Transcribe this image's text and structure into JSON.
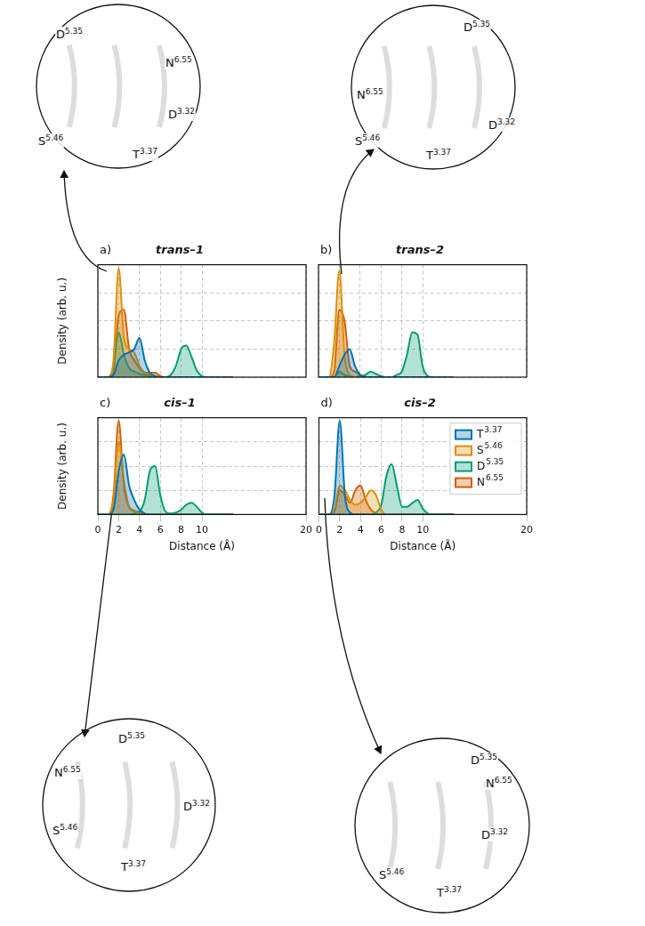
{
  "chart_data": [
    {
      "type": "area",
      "label": "a)",
      "title": "trans–1",
      "x": [
        0,
        0.5,
        1,
        1.5,
        2,
        2.5,
        3,
        3.5,
        4,
        4.5,
        5,
        5.5,
        6,
        6.5,
        7,
        7.5,
        8,
        8.5,
        9,
        9.5,
        10,
        10.5,
        11,
        11.5,
        12,
        12.5,
        13
      ],
      "series": [
        {
          "name": "T3.37",
          "color": "#0173b2",
          "values": [
            0,
            0,
            0,
            0.02,
            0.15,
            0.2,
            0.22,
            0.25,
            0.35,
            0.15,
            0.04,
            0.01,
            0,
            0,
            0,
            0,
            0,
            0,
            0,
            0,
            0,
            0,
            0,
            0,
            0,
            0,
            0
          ]
        },
        {
          "name": "S5.46",
          "color": "#de8f05",
          "values": [
            0,
            0,
            0,
            0.15,
            0.97,
            0.35,
            0.25,
            0.22,
            0.1,
            0.04,
            0.02,
            0,
            0,
            0,
            0,
            0,
            0,
            0,
            0,
            0,
            0,
            0,
            0,
            0,
            0,
            0,
            0
          ]
        },
        {
          "name": "D5.35",
          "color": "#029e73",
          "values": [
            0,
            0,
            0,
            0.1,
            0.4,
            0.2,
            0.08,
            0.05,
            0.03,
            0.02,
            0.01,
            0,
            0,
            0,
            0.02,
            0.1,
            0.25,
            0.28,
            0.18,
            0.06,
            0.01,
            0,
            0,
            0,
            0,
            0,
            0
          ]
        },
        {
          "name": "N6.55",
          "color": "#d55e00",
          "values": [
            0,
            0,
            0,
            0.05,
            0.55,
            0.6,
            0.25,
            0.15,
            0.08,
            0.04,
            0.04,
            0.04,
            0.01,
            0,
            0,
            0,
            0,
            0,
            0,
            0,
            0,
            0,
            0,
            0,
            0,
            0,
            0
          ]
        }
      ],
      "xlim": [
        0,
        20
      ],
      "xticks": [
        0,
        2,
        4,
        6,
        8,
        10,
        20
      ],
      "ylim": [
        0,
        1
      ],
      "yticks": [
        0,
        0.25,
        0.5,
        0.75,
        1
      ],
      "ylabel": "Density (arb. u.)",
      "grid": true,
      "tick_labels": false,
      "inset_labels": [
        "D5.35",
        "N6.55",
        "S5.46",
        "D3.32",
        "T3.37"
      ]
    },
    {
      "type": "area",
      "label": "b)",
      "title": "trans–2",
      "x": [
        0,
        0.5,
        1,
        1.5,
        2,
        2.5,
        3,
        3.5,
        4,
        4.5,
        5,
        5.5,
        6,
        6.5,
        7,
        7.5,
        8,
        8.5,
        9,
        9.5,
        10,
        10.5,
        11,
        11.5,
        12,
        12.5,
        13
      ],
      "series": [
        {
          "name": "T3.37",
          "color": "#0173b2",
          "values": [
            0,
            0,
            0,
            0,
            0.1,
            0.2,
            0.25,
            0.1,
            0.02,
            0,
            0,
            0,
            0,
            0,
            0,
            0,
            0,
            0,
            0,
            0,
            0,
            0,
            0,
            0,
            0,
            0,
            0
          ]
        },
        {
          "name": "S5.46",
          "color": "#de8f05",
          "values": [
            0,
            0,
            0,
            0.3,
            0.95,
            0.2,
            0.02,
            0,
            0,
            0,
            0,
            0,
            0,
            0,
            0,
            0,
            0,
            0,
            0,
            0,
            0,
            0,
            0,
            0,
            0,
            0,
            0
          ]
        },
        {
          "name": "D5.35",
          "color": "#029e73",
          "values": [
            0,
            0,
            0,
            0,
            0.05,
            0.02,
            0.01,
            0,
            0.01,
            0.02,
            0.05,
            0.03,
            0.01,
            0,
            0,
            0.02,
            0.05,
            0.2,
            0.4,
            0.38,
            0.1,
            0.01,
            0,
            0,
            0,
            0,
            0
          ]
        },
        {
          "name": "N6.55",
          "color": "#d55e00",
          "values": [
            0,
            0,
            0,
            0.05,
            0.6,
            0.5,
            0.1,
            0.05,
            0.02,
            0,
            0,
            0,
            0,
            0,
            0,
            0,
            0,
            0,
            0,
            0,
            0,
            0,
            0,
            0,
            0,
            0,
            0
          ]
        }
      ],
      "xlim": [
        0,
        20
      ],
      "xticks": [
        0,
        2,
        4,
        6,
        8,
        10,
        20
      ],
      "ylim": [
        0,
        1
      ],
      "yticks": [
        0,
        0.25,
        0.5,
        0.75,
        1
      ],
      "grid": true,
      "tick_labels": false,
      "inset_labels": [
        "D5.35",
        "N6.55",
        "S5.46",
        "D3.32",
        "T3.37"
      ]
    },
    {
      "type": "area",
      "label": "c)",
      "title": "cis–1",
      "x": [
        0,
        0.5,
        1,
        1.5,
        2,
        2.5,
        3,
        3.5,
        4,
        4.5,
        5,
        5.5,
        6,
        6.5,
        7,
        7.5,
        8,
        8.5,
        9,
        9.5,
        10,
        10.5,
        11,
        11.5,
        12,
        12.5,
        13
      ],
      "series": [
        {
          "name": "T3.37",
          "color": "#0173b2",
          "values": [
            0,
            0,
            0,
            0.05,
            0.45,
            0.62,
            0.3,
            0.15,
            0.05,
            0.01,
            0,
            0,
            0,
            0,
            0,
            0,
            0,
            0,
            0,
            0,
            0,
            0,
            0,
            0,
            0,
            0,
            0
          ]
        },
        {
          "name": "S5.46",
          "color": "#de8f05",
          "values": [
            0,
            0,
            0,
            0.15,
            0.75,
            0.35,
            0.08,
            0.03,
            0.01,
            0,
            0,
            0,
            0,
            0,
            0,
            0,
            0,
            0,
            0,
            0,
            0,
            0,
            0,
            0,
            0,
            0,
            0
          ]
        },
        {
          "name": "D5.35",
          "color": "#029e73",
          "values": [
            0,
            0,
            0,
            0,
            0,
            0,
            0,
            0.01,
            0.03,
            0.15,
            0.45,
            0.5,
            0.2,
            0.03,
            0.01,
            0.02,
            0.05,
            0.1,
            0.12,
            0.08,
            0.02,
            0,
            0,
            0,
            0,
            0,
            0
          ]
        },
        {
          "name": "N6.55",
          "color": "#d55e00",
          "values": [
            0,
            0,
            0,
            0.2,
            0.97,
            0.3,
            0.08,
            0.04,
            0.02,
            0,
            0,
            0,
            0,
            0,
            0,
            0,
            0,
            0,
            0,
            0,
            0,
            0,
            0,
            0,
            0,
            0,
            0
          ]
        }
      ],
      "xlim": [
        0,
        20
      ],
      "xticks": [
        0,
        2,
        4,
        6,
        8,
        10,
        20
      ],
      "ylim": [
        0,
        1
      ],
      "yticks": [
        0,
        0.25,
        0.5,
        0.75,
        1
      ],
      "xlabel": "Distance (Å)",
      "ylabel": "Density (arb. u.)",
      "grid": true,
      "tick_labels": "x",
      "inset_labels": [
        "D5.35",
        "N6.55",
        "S5.46",
        "D3.32",
        "T3.37"
      ]
    },
    {
      "type": "area",
      "label": "d)",
      "title": "cis–2",
      "x": [
        0,
        0.5,
        1,
        1.5,
        2,
        2.5,
        3,
        3.5,
        4,
        4.5,
        5,
        5.5,
        6,
        6.5,
        7,
        7.5,
        8,
        8.5,
        9,
        9.5,
        10,
        10.5,
        11,
        11.5,
        12,
        12.5,
        13
      ],
      "series": [
        {
          "name": "T3.37",
          "color": "#0173b2",
          "values": [
            0,
            0,
            0,
            0.2,
            0.97,
            0.2,
            0.02,
            0,
            0,
            0,
            0,
            0,
            0,
            0,
            0,
            0,
            0,
            0,
            0,
            0,
            0,
            0,
            0,
            0,
            0,
            0,
            0
          ]
        },
        {
          "name": "S5.46",
          "color": "#de8f05",
          "values": [
            0,
            0,
            0,
            0.05,
            0.3,
            0.25,
            0.15,
            0.1,
            0.12,
            0.18,
            0.25,
            0.2,
            0.05,
            0,
            0,
            0,
            0,
            0,
            0,
            0,
            0,
            0,
            0,
            0,
            0,
            0,
            0
          ]
        },
        {
          "name": "D5.35",
          "color": "#029e73",
          "values": [
            0,
            0,
            0,
            0,
            0,
            0,
            0,
            0,
            0,
            0,
            0,
            0.02,
            0.1,
            0.4,
            0.52,
            0.3,
            0.08,
            0.08,
            0.12,
            0.15,
            0.06,
            0.01,
            0,
            0,
            0,
            0,
            0
          ]
        },
        {
          "name": "N6.55",
          "color": "#d55e00",
          "values": [
            0,
            0,
            0,
            0.03,
            0.25,
            0.2,
            0.12,
            0.25,
            0.3,
            0.15,
            0.05,
            0.01,
            0,
            0,
            0,
            0,
            0,
            0,
            0,
            0,
            0,
            0,
            0,
            0,
            0,
            0,
            0
          ]
        }
      ],
      "xlim": [
        0,
        20
      ],
      "xticks": [
        0,
        2,
        4,
        6,
        8,
        10,
        20
      ],
      "ylim": [
        0,
        1
      ],
      "yticks": [
        0,
        0.25,
        0.5,
        0.75,
        1
      ],
      "xlabel": "Distance (Å)",
      "grid": true,
      "tick_labels": "x",
      "legend": "upper right",
      "inset_labels": [
        "D5.35",
        "N6.55",
        "S5.46",
        "D3.32",
        "T3.37"
      ]
    }
  ]
}
